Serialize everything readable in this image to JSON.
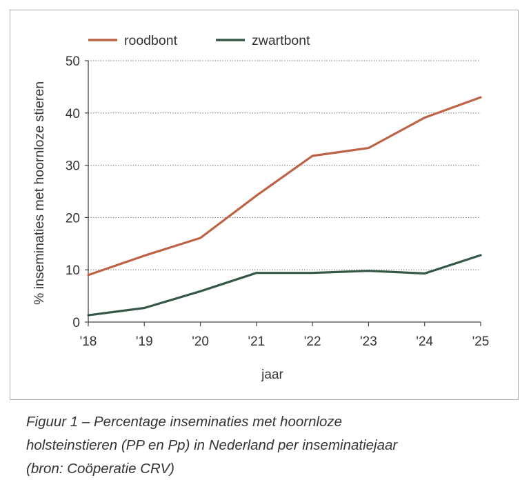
{
  "chart_data": {
    "type": "line",
    "categories": [
      "'18",
      "'19",
      "'20",
      "'21",
      "'22",
      "'23",
      "'24",
      "'25"
    ],
    "series": [
      {
        "name": "roodbont",
        "color": "#bd6245",
        "values": [
          9,
          12.7,
          16.1,
          24.2,
          31.8,
          33.3,
          39.1,
          43
        ]
      },
      {
        "name": "zwartbont",
        "color": "#355745",
        "values": [
          1.3,
          2.7,
          5.9,
          9.4,
          9.4,
          9.8,
          9.3,
          12.8
        ]
      }
    ],
    "ylim": [
      0,
      50
    ],
    "yticks": [
      0,
      10,
      20,
      30,
      40,
      50
    ],
    "ylabel": "% inseminaties met hoornloze stieren",
    "xlabel": "jaar",
    "grid": "dotted horizontal",
    "legend": "top-left"
  },
  "caption": {
    "line1": "Figuur 1 – Percentage inseminaties met hoornloze",
    "line2": "holsteinstieren (PP en Pp) in Nederland per inseminatiejaar",
    "line3": "(bron: Coöperatie CRV)"
  }
}
